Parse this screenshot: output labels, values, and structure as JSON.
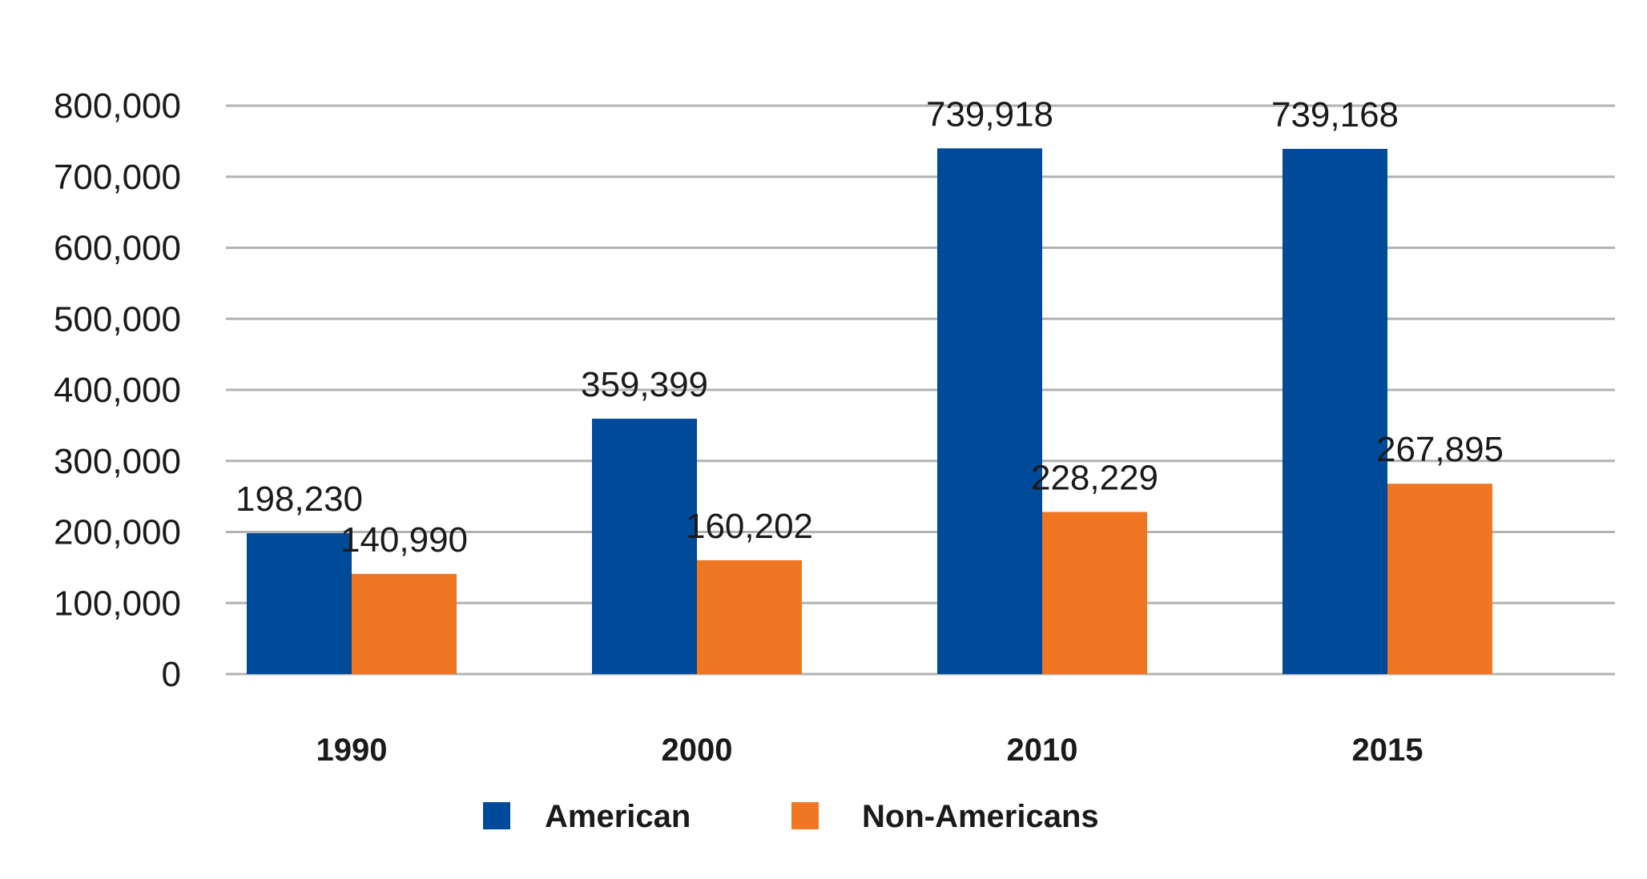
{
  "chart_data": {
    "type": "bar",
    "categories": [
      "1990",
      "2000",
      "2010",
      "2015"
    ],
    "series": [
      {
        "name": "American",
        "color": "#004a9a",
        "values": [
          198230,
          359399,
          739918,
          739168
        ],
        "labels": [
          "198,230",
          "359,399",
          "739,918",
          "739,168"
        ]
      },
      {
        "name": "Non-Americans",
        "color": "#ef7622",
        "values": [
          140990,
          160202,
          228229,
          267895
        ],
        "labels": [
          "140,990",
          "160,202",
          "228,229",
          "267,895"
        ]
      }
    ],
    "ylim": [
      0,
      800000
    ],
    "yticks": [
      0,
      100000,
      200000,
      300000,
      400000,
      500000,
      600000,
      700000,
      800000
    ],
    "ytick_labels": [
      "0",
      "100,000",
      "200,000",
      "300,000",
      "400,000",
      "500,000",
      "600,000",
      "700,000",
      "800,000"
    ],
    "grid": true,
    "gridline_color": "#b3b3b3",
    "legend_position": "bottom-center",
    "title": "",
    "xlabel": "",
    "ylabel": ""
  }
}
